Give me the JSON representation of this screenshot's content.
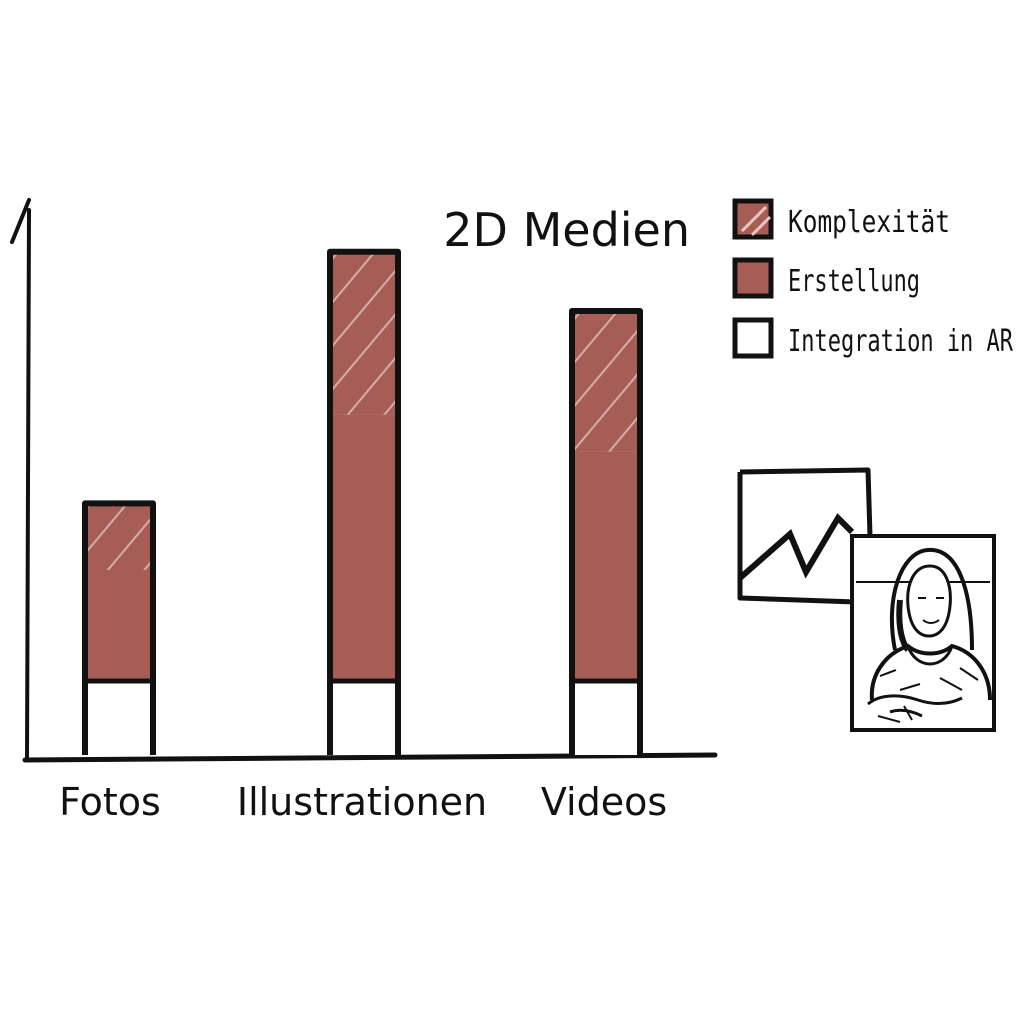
{
  "chart_data": {
    "type": "bar",
    "title": "2D Medien",
    "categories": [
      "Fotos",
      "Illustrationen",
      "Videos"
    ],
    "series": [
      {
        "name": "Integration in AR",
        "values": [
          1,
          1,
          1
        ],
        "color": "#ffffff",
        "pattern": "none"
      },
      {
        "name": "Erstellung",
        "values": [
          1.5,
          3.6,
          3.1
        ],
        "color": "#a65d55",
        "pattern": "none"
      },
      {
        "name": "Komplexität",
        "values": [
          0.9,
          2.2,
          1.9
        ],
        "color": "#a65d55",
        "pattern": "diagonal-hatch"
      }
    ],
    "stacked": true,
    "xlabel": "",
    "ylabel": "",
    "ylim": [
      0,
      7.5
    ],
    "axis_ticks": false,
    "grid": false,
    "legend": {
      "position": "top-right",
      "items": [
        {
          "label": "Komplexität",
          "swatch": "hatched-red"
        },
        {
          "label": "Erstellung",
          "swatch": "solid-red"
        },
        {
          "label": "Integration in AR",
          "swatch": "white"
        }
      ]
    },
    "decorations": [
      "image-frame-icon",
      "mona-lisa-icon"
    ]
  }
}
